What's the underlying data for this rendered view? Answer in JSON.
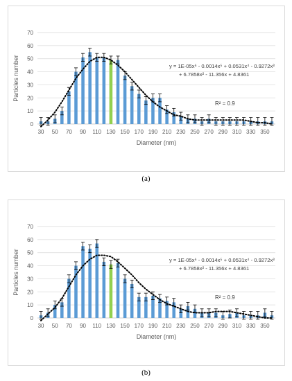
{
  "captions": {
    "a": "(a)",
    "b": "(b)"
  },
  "colors": {
    "bar": "#5b9bd5",
    "highlight": "#92d050",
    "trend": "#000000",
    "grid": "#d9d9d9"
  },
  "chart_data": [
    {
      "type": "bar",
      "panel": "a",
      "ylabel": "Particles number",
      "xlabel": "Diameter (nm)",
      "ylim": [
        0,
        70
      ],
      "yticks": [
        0,
        10,
        20,
        30,
        40,
        50,
        60,
        70
      ],
      "grid": true,
      "categories": [
        30,
        40,
        50,
        60,
        70,
        80,
        90,
        100,
        110,
        120,
        130,
        140,
        150,
        160,
        170,
        180,
        190,
        200,
        210,
        220,
        230,
        240,
        250,
        260,
        270,
        280,
        290,
        300,
        310,
        320,
        330,
        340,
        350,
        360
      ],
      "xtick_labels": [
        "30",
        "50",
        "70",
        "90",
        "110",
        "130",
        "150",
        "170",
        "190",
        "210",
        "230",
        "250",
        "270",
        "290",
        "310",
        "330",
        "350"
      ],
      "highlight_category": 130,
      "values": [
        2,
        2,
        4,
        10,
        25,
        40,
        51,
        55,
        51,
        51,
        49,
        49,
        37,
        29,
        23,
        18,
        20,
        20,
        11,
        9,
        6,
        4,
        4,
        2,
        4,
        2,
        2,
        2,
        2,
        2,
        2,
        2,
        2,
        2
      ],
      "errors": [
        3,
        3,
        3,
        3,
        3,
        3,
        3,
        3,
        3,
        3,
        3,
        3,
        3,
        3,
        3,
        3,
        3,
        3,
        3,
        3,
        3,
        3,
        3,
        3,
        3,
        3,
        3,
        3,
        3,
        3,
        3,
        3,
        3,
        3
      ],
      "trendline": {
        "style": "dotted",
        "x": [
          30,
          40,
          50,
          60,
          70,
          80,
          90,
          100,
          110,
          120,
          130,
          140,
          150,
          160,
          170,
          180,
          190,
          200,
          210,
          220,
          230,
          240,
          250,
          260,
          270,
          280,
          290,
          300,
          310,
          320,
          330,
          340,
          350,
          360
        ],
        "y": [
          -2,
          3,
          9,
          17,
          26,
          35,
          42,
          48,
          51,
          51,
          49,
          45,
          40,
          34,
          28,
          22,
          17,
          13,
          10,
          7,
          6,
          4,
          3,
          3,
          3,
          3,
          3,
          3,
          3,
          3,
          2,
          1,
          1,
          0
        ]
      },
      "equation_lines": [
        "y = 1E-05x⁶ - 0.0014x⁵ + 0.0531x⁴ - 0.9272x³",
        "+ 6.7858x² - 11.356x + 4.8361"
      ],
      "r2": "R² = 0.9"
    },
    {
      "type": "bar",
      "panel": "b",
      "ylabel": "Particles number",
      "xlabel": "Diameter (nm)",
      "ylim": [
        0,
        70
      ],
      "yticks": [
        0,
        10,
        20,
        30,
        40,
        50,
        60,
        70
      ],
      "grid": true,
      "categories": [
        30,
        40,
        50,
        60,
        70,
        80,
        90,
        100,
        110,
        120,
        130,
        140,
        150,
        160,
        170,
        180,
        190,
        200,
        210,
        220,
        230,
        240,
        250,
        260,
        270,
        280,
        290,
        300,
        310,
        320,
        330,
        340,
        350,
        360
      ],
      "xtick_labels": [
        "30",
        "50",
        "70",
        "90",
        "110",
        "130",
        "150",
        "170",
        "190",
        "210",
        "230",
        "250",
        "270",
        "290",
        "310",
        "330",
        "350"
      ],
      "highlight_category": 130,
      "values": [
        2,
        4,
        10,
        12,
        30,
        40,
        55,
        53,
        57,
        43,
        41,
        42,
        30,
        26,
        16,
        16,
        17,
        15,
        13,
        12,
        7,
        9,
        7,
        4,
        4,
        4,
        2,
        3,
        4,
        2,
        2,
        2,
        4,
        2
      ],
      "errors": [
        3,
        3,
        3,
        3,
        3,
        3,
        3,
        3,
        3,
        3,
        3,
        3,
        3,
        3,
        3,
        3,
        3,
        3,
        3,
        3,
        3,
        3,
        3,
        3,
        3,
        3,
        3,
        3,
        3,
        3,
        3,
        3,
        3,
        3
      ],
      "trendline": {
        "style": "dotted",
        "x": [
          30,
          40,
          50,
          60,
          70,
          80,
          90,
          100,
          110,
          120,
          130,
          140,
          150,
          160,
          170,
          180,
          190,
          200,
          210,
          220,
          230,
          240,
          250,
          260,
          270,
          280,
          290,
          300,
          310,
          320,
          330,
          340,
          350,
          360
        ],
        "y": [
          -2,
          3,
          8,
          15,
          24,
          33,
          40,
          45,
          48,
          48,
          47,
          43,
          38,
          33,
          27,
          22,
          18,
          14,
          11,
          9,
          7,
          5,
          4,
          4,
          4,
          5,
          5,
          5,
          4,
          3,
          2,
          1,
          0,
          0
        ]
      },
      "equation_lines": [
        "y = 1E-05x⁶ - 0.0014x⁵ + 0.0531x⁴ - 0.9272x³",
        "+ 6.7858x² - 11.356x + 4.8361"
      ],
      "r2": "R² = 0.9"
    }
  ]
}
